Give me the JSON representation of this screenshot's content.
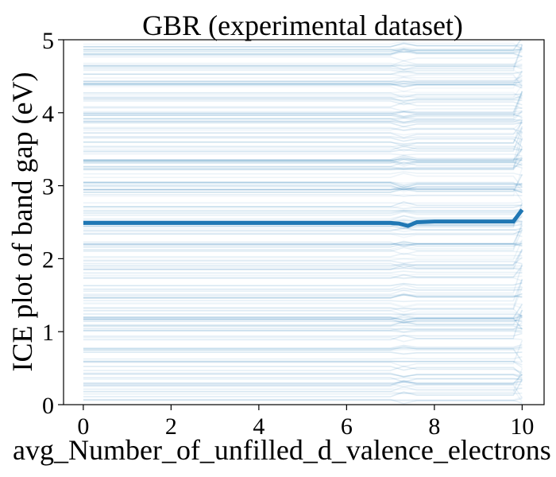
{
  "chart_data": {
    "type": "line",
    "title": "GBR (experimental dataset)",
    "xlabel": "avg_Number_of_unfilled_d_valence_electrons",
    "ylabel": "ICE plot of band gap (eV)",
    "xlim": [
      -0.45,
      10.5
    ],
    "ylim": [
      0,
      5
    ],
    "xticks": [
      0,
      2,
      4,
      6,
      8,
      10
    ],
    "yticks": [
      0,
      1,
      2,
      3,
      4,
      5
    ],
    "grid": false,
    "legend": "none",
    "colors": {
      "lines": "#1f77b4",
      "average": "#1f77b4"
    },
    "ice_curves": {
      "count": 220,
      "x_range": [
        0,
        10
      ],
      "baseline_range": [
        0.05,
        4.95
      ],
      "note": "individual conditional expectation curves: nearly flat, small dip near x≈7.3, rise near x≈10"
    },
    "average_curve": {
      "name": "",
      "x": [
        0,
        1,
        2,
        3,
        4,
        5,
        6,
        7.0,
        7.2,
        7.4,
        7.6,
        8,
        9,
        9.8,
        10
      ],
      "y": [
        2.49,
        2.49,
        2.49,
        2.49,
        2.49,
        2.49,
        2.49,
        2.49,
        2.48,
        2.45,
        2.5,
        2.51,
        2.51,
        2.51,
        2.67
      ]
    }
  }
}
